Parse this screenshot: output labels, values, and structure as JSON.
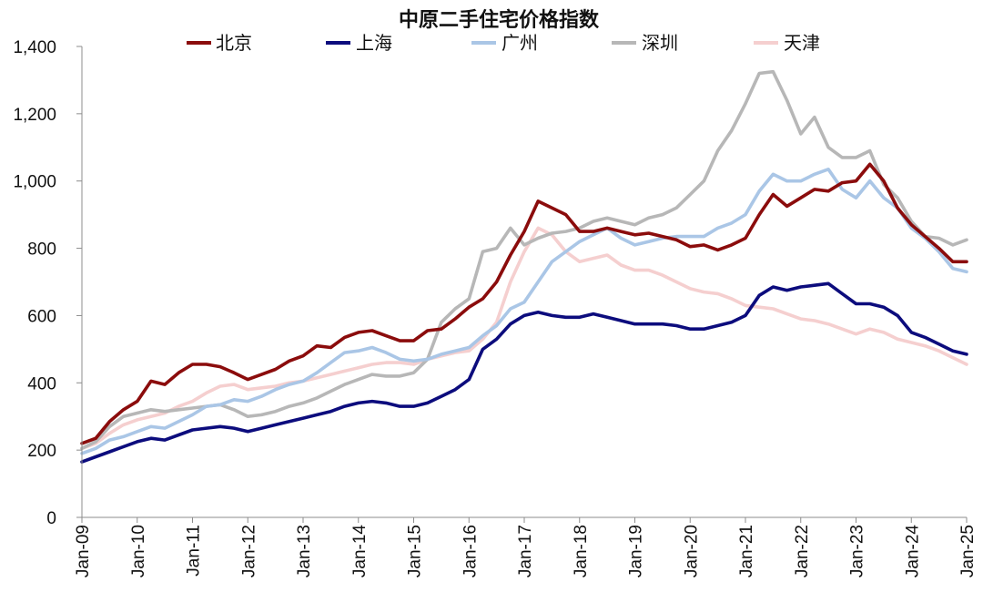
{
  "chart_data": {
    "type": "line",
    "title": "中原二手住宅价格指数",
    "xlabel": "",
    "ylabel": "",
    "legend_position": "top",
    "grid": false,
    "ylim": [
      0,
      1400
    ],
    "xlim": [
      "2009-01",
      "2025-01"
    ],
    "y_ticks": [
      0,
      200,
      400,
      600,
      800,
      1000,
      1200,
      1400
    ],
    "y_tick_labels": [
      "0",
      "200",
      "400",
      "600",
      "800",
      "1,000",
      "1,200",
      "1,400"
    ],
    "x_ticks": [
      "2009-01",
      "2010-01",
      "2011-01",
      "2012-01",
      "2013-01",
      "2014-01",
      "2015-01",
      "2016-01",
      "2017-01",
      "2018-01",
      "2019-01",
      "2020-01",
      "2021-01",
      "2022-01",
      "2023-01",
      "2024-01",
      "2025-01"
    ],
    "x_tick_labels": [
      "Jan-09",
      "Jan-10",
      "Jan-11",
      "Jan-12",
      "Jan-13",
      "Jan-14",
      "Jan-15",
      "Jan-16",
      "Jan-17",
      "Jan-18",
      "Jan-19",
      "Jan-20",
      "Jan-21",
      "Jan-22",
      "Jan-23",
      "Jan-24",
      "Jan-25"
    ],
    "x": [
      "2009-01",
      "2009-04",
      "2009-07",
      "2009-10",
      "2010-01",
      "2010-04",
      "2010-07",
      "2010-10",
      "2011-01",
      "2011-04",
      "2011-07",
      "2011-10",
      "2012-01",
      "2012-04",
      "2012-07",
      "2012-10",
      "2013-01",
      "2013-04",
      "2013-07",
      "2013-10",
      "2014-01",
      "2014-04",
      "2014-07",
      "2014-10",
      "2015-01",
      "2015-04",
      "2015-07",
      "2015-10",
      "2016-01",
      "2016-04",
      "2016-07",
      "2016-10",
      "2017-01",
      "2017-04",
      "2017-07",
      "2017-10",
      "2018-01",
      "2018-04",
      "2018-07",
      "2018-10",
      "2019-01",
      "2019-04",
      "2019-07",
      "2019-10",
      "2020-01",
      "2020-04",
      "2020-07",
      "2020-10",
      "2021-01",
      "2021-04",
      "2021-07",
      "2021-10",
      "2022-01",
      "2022-04",
      "2022-07",
      "2022-10",
      "2023-01",
      "2023-04",
      "2023-07",
      "2023-10",
      "2024-01",
      "2024-04",
      "2024-07",
      "2024-10",
      "2025-01"
    ],
    "series": [
      {
        "name": "北京",
        "color": "#8b0c0c",
        "values": [
          220,
          235,
          285,
          320,
          345,
          405,
          395,
          430,
          455,
          455,
          448,
          430,
          410,
          425,
          440,
          465,
          480,
          510,
          505,
          535,
          550,
          555,
          540,
          525,
          525,
          555,
          560,
          590,
          625,
          650,
          700,
          780,
          850,
          940,
          920,
          900,
          850,
          850,
          860,
          850,
          840,
          845,
          835,
          825,
          805,
          810,
          795,
          810,
          830,
          900,
          960,
          925,
          950,
          975,
          970,
          995,
          1000,
          1050,
          1000,
          920,
          870,
          835,
          800,
          760,
          760
        ]
      },
      {
        "name": "上海",
        "color": "#0c0c7d",
        "values": [
          165,
          180,
          195,
          210,
          225,
          235,
          230,
          245,
          260,
          265,
          270,
          265,
          255,
          265,
          275,
          285,
          295,
          305,
          315,
          330,
          340,
          345,
          340,
          330,
          330,
          340,
          360,
          380,
          410,
          500,
          530,
          575,
          600,
          610,
          600,
          595,
          595,
          605,
          595,
          585,
          575,
          575,
          575,
          570,
          560,
          560,
          570,
          580,
          600,
          660,
          685,
          675,
          685,
          690,
          695,
          665,
          635,
          635,
          625,
          600,
          550,
          535,
          515,
          495,
          485
        ]
      },
      {
        "name": "广州",
        "color": "#aac6e6",
        "values": [
          190,
          205,
          230,
          240,
          255,
          270,
          265,
          285,
          305,
          330,
          335,
          350,
          345,
          360,
          380,
          395,
          405,
          430,
          460,
          490,
          495,
          505,
          490,
          470,
          465,
          470,
          485,
          495,
          505,
          540,
          570,
          620,
          640,
          700,
          760,
          790,
          820,
          840,
          860,
          830,
          810,
          820,
          830,
          835,
          835,
          835,
          860,
          875,
          900,
          970,
          1020,
          1000,
          1000,
          1020,
          1035,
          975,
          950,
          1000,
          950,
          920,
          860,
          830,
          790,
          740,
          730
        ]
      },
      {
        "name": "深圳",
        "color": "#b7b7b7",
        "values": [
          205,
          225,
          270,
          300,
          310,
          320,
          315,
          320,
          325,
          330,
          335,
          320,
          300,
          305,
          315,
          330,
          340,
          355,
          375,
          395,
          410,
          425,
          420,
          420,
          430,
          470,
          580,
          620,
          650,
          790,
          800,
          860,
          810,
          830,
          845,
          850,
          860,
          880,
          890,
          880,
          870,
          890,
          900,
          920,
          960,
          1000,
          1090,
          1150,
          1230,
          1320,
          1325,
          1240,
          1140,
          1190,
          1100,
          1070,
          1070,
          1090,
          990,
          950,
          880,
          835,
          830,
          810,
          825
        ]
      },
      {
        "name": "天津",
        "color": "#f5cfcf",
        "values": [
          205,
          220,
          250,
          275,
          290,
          300,
          310,
          330,
          345,
          370,
          390,
          395,
          380,
          385,
          390,
          400,
          405,
          415,
          425,
          435,
          445,
          455,
          460,
          460,
          455,
          470,
          480,
          490,
          495,
          530,
          580,
          700,
          790,
          860,
          840,
          790,
          760,
          770,
          780,
          750,
          735,
          735,
          720,
          700,
          680,
          670,
          665,
          650,
          630,
          625,
          620,
          605,
          590,
          585,
          575,
          560,
          545,
          560,
          550,
          530,
          520,
          510,
          495,
          475,
          455
        ]
      }
    ]
  }
}
